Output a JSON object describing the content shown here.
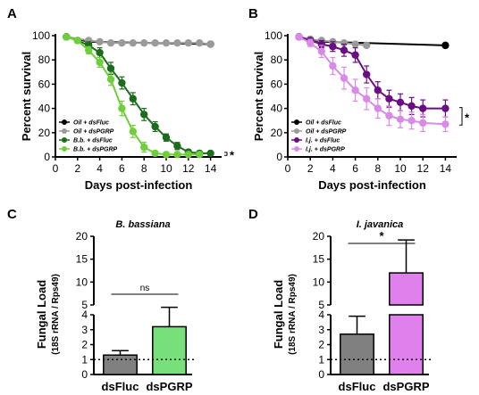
{
  "chart_data": [
    {
      "panel": "A",
      "type": "line",
      "xlabel": "Days post-infection",
      "ylabel": "Percent survival",
      "xlim": [
        0,
        15
      ],
      "ylim": [
        0,
        100
      ],
      "xticks": [
        0,
        2,
        4,
        6,
        8,
        10,
        12,
        14
      ],
      "yticks": [
        0,
        20,
        40,
        60,
        80,
        100
      ],
      "legend_position": "bottom-left",
      "significance": "*",
      "series": [
        {
          "name": "Oil + dsFluc",
          "color": "#000000",
          "x": [
            1,
            3,
            14
          ],
          "y": [
            99,
            95,
            93
          ],
          "err": [
            0,
            1,
            1
          ]
        },
        {
          "name": "Oil + dsPGRP",
          "color": "#9a9a9a",
          "x": [
            1,
            3,
            4,
            5,
            6,
            7,
            8,
            9,
            10,
            11,
            12,
            13,
            14
          ],
          "y": [
            99,
            96,
            95,
            94,
            94,
            94,
            94,
            94,
            94,
            94,
            94,
            94,
            93
          ],
          "err": [
            0,
            1,
            1,
            1,
            1,
            1,
            1,
            1,
            1,
            1,
            1,
            1,
            1
          ]
        },
        {
          "name": "B.b. + dsFluc",
          "color": "#1d6b1d",
          "x": [
            1,
            2,
            3,
            4,
            5,
            6,
            7,
            8,
            9,
            10,
            11,
            12,
            13,
            14
          ],
          "y": [
            99,
            96,
            92,
            86,
            73,
            61,
            48,
            35,
            25,
            16,
            9,
            4,
            3,
            3
          ],
          "err": [
            0,
            2,
            3,
            4,
            5,
            5,
            5,
            5,
            4,
            3,
            3,
            2,
            2,
            1
          ]
        },
        {
          "name": "B.b. + dsPGRP",
          "color": "#6fcf3a",
          "x": [
            1,
            2,
            3,
            4,
            5,
            6,
            7,
            8,
            9,
            10,
            11,
            12,
            13
          ],
          "y": [
            99,
            96,
            88,
            78,
            64,
            40,
            21,
            8,
            3,
            2,
            2,
            2,
            2
          ],
          "err": [
            0,
            2,
            3,
            4,
            5,
            6,
            5,
            4,
            2,
            1,
            1,
            1,
            1
          ]
        }
      ]
    },
    {
      "panel": "B",
      "type": "line",
      "xlabel": "Days post-infection",
      "ylabel": "Percent survival",
      "xlim": [
        0,
        15
      ],
      "ylim": [
        0,
        100
      ],
      "xticks": [
        0,
        2,
        4,
        6,
        8,
        10,
        12,
        14
      ],
      "yticks": [
        0,
        20,
        40,
        60,
        80,
        100
      ],
      "legend_position": "bottom-left",
      "significance": "*",
      "series": [
        {
          "name": "Oil + dsFluc",
          "color": "#000000",
          "x": [
            1,
            2,
            3,
            14
          ],
          "y": [
            99,
            97,
            95,
            92
          ],
          "err": [
            0,
            1,
            1,
            1
          ]
        },
        {
          "name": "Oil + dsPGRP",
          "color": "#9a9a9a",
          "x": [
            1,
            2,
            3,
            4,
            5,
            6,
            7
          ],
          "y": [
            99,
            97,
            96,
            95,
            94,
            93,
            92
          ],
          "err": [
            0,
            1,
            1,
            1,
            1,
            1,
            1
          ]
        },
        {
          "name": "I.j. + dsFluc",
          "color": "#6a0d83",
          "x": [
            1,
            2,
            3,
            4,
            5,
            6,
            7,
            8,
            9,
            10,
            11,
            12,
            14
          ],
          "y": [
            99,
            96,
            93,
            91,
            88,
            84,
            68,
            55,
            48,
            45,
            42,
            40,
            40
          ],
          "err": [
            0,
            2,
            3,
            4,
            5,
            6,
            7,
            7,
            7,
            7,
            7,
            7,
            7
          ]
        },
        {
          "name": "I.j. + dsPGRP",
          "color": "#d98ae6",
          "x": [
            1,
            2,
            3,
            4,
            5,
            6,
            7,
            8,
            9,
            10,
            11,
            12,
            14
          ],
          "y": [
            99,
            94,
            87,
            75,
            65,
            55,
            48,
            40,
            34,
            31,
            30,
            28,
            27
          ],
          "err": [
            0,
            3,
            5,
            7,
            9,
            9,
            9,
            8,
            8,
            7,
            7,
            7,
            6
          ]
        }
      ]
    },
    {
      "panel": "C",
      "type": "bar",
      "title": "B. bassiana",
      "ylabel": "Fungal Load",
      "ylabel_sub": "(18S rRNA / Rps49)",
      "categories": [
        "dsFluc",
        "dsPGRP"
      ],
      "values": [
        1.3,
        3.2
      ],
      "errors": [
        0.3,
        1.3
      ],
      "colors": [
        "#808080",
        "#78e07a"
      ],
      "yticks_lower": [
        0,
        1,
        2,
        3,
        4
      ],
      "yticks_upper": [
        5,
        10,
        15,
        20
      ],
      "axis_break": [
        4,
        5
      ],
      "reference_line": 1,
      "significance": "ns"
    },
    {
      "panel": "D",
      "type": "bar",
      "title": "I. javanica",
      "ylabel": "Fungal Load",
      "ylabel_sub": "(18S rRNA / Rps49)",
      "categories": [
        "dsFluc",
        "dsPGRP"
      ],
      "values": [
        2.7,
        12
      ],
      "errors": [
        1.2,
        7.2
      ],
      "colors": [
        "#808080",
        "#df80ec"
      ],
      "yticks_lower": [
        0,
        1,
        2,
        3,
        4
      ],
      "yticks_upper": [
        5,
        10,
        15,
        20
      ],
      "axis_break": [
        4,
        5
      ],
      "reference_line": 1,
      "significance": "*"
    }
  ]
}
